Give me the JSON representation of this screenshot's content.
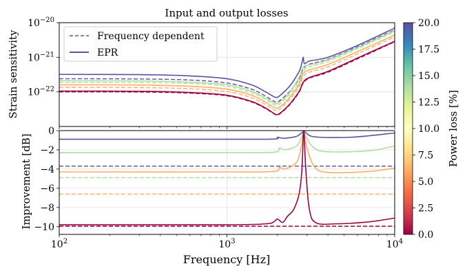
{
  "chart_data": [
    {
      "type": "line",
      "title": "Input and output losses",
      "xlabel": "",
      "ylabel": "Strain sensitivity",
      "xscale": "log",
      "yscale": "log",
      "xlim": [
        100,
        10000
      ],
      "ylim": [
        1e-23,
        1e-20
      ],
      "grid": true,
      "x_tick_labels": [],
      "y_ticks": [
        {
          "value": 1e-22,
          "base": "10",
          "exp": "−22"
        },
        {
          "value": 1e-21,
          "base": "10",
          "exp": "−21"
        },
        {
          "value": 1e-20,
          "base": "10",
          "exp": "−20"
        }
      ],
      "legend": {
        "placement": "top-left",
        "entries": [
          {
            "label": "Frequency dependent",
            "style": "dashed",
            "color": "#5e4fa2"
          },
          {
            "label": "EPR",
            "style": "solid",
            "color": "#5e4fa2"
          }
        ]
      },
      "series": [
        {
          "style": "solid",
          "power_loss_pct": 20,
          "color": "#5e4fa2",
          "values": [
            [
              100,
              3.2e-22
            ],
            [
              300,
              3.15e-22
            ],
            [
              600,
              2.9e-22
            ],
            [
              1000,
              2.4e-22
            ],
            [
              1400,
              1.6e-22
            ],
            [
              1700,
              1e-22
            ],
            [
              1900,
              7.3e-23
            ],
            [
              2000,
              7e-23
            ],
            [
              2150,
              9.2e-23
            ],
            [
              2400,
              1.6e-22
            ],
            [
              2700,
              4e-22
            ],
            [
              2800,
              7e-22
            ],
            [
              2850,
              1e-21
            ],
            [
              2900,
              6.5e-22
            ],
            [
              3100,
              7.8e-22
            ],
            [
              4000,
              1e-21
            ],
            [
              6000,
              2.2e-21
            ],
            [
              10000,
              7e-21
            ]
          ]
        },
        {
          "style": "dashed",
          "power_loss_pct": 20,
          "color": "#5e4fa2",
          "values": [
            [
              100,
              2.4e-22
            ],
            [
              300,
              2.36e-22
            ],
            [
              600,
              2.2e-22
            ],
            [
              1000,
              1.8e-22
            ],
            [
              1400,
              1.2e-22
            ],
            [
              1700,
              7.5e-23
            ],
            [
              1900,
              5.4e-23
            ],
            [
              2000,
              5.1e-23
            ],
            [
              2150,
              6.6e-23
            ],
            [
              2400,
              1.1e-22
            ],
            [
              2700,
              2.4e-22
            ],
            [
              2850,
              4.6e-22
            ],
            [
              3100,
              6.3e-22
            ],
            [
              4000,
              8.8e-22
            ],
            [
              6000,
              2e-21
            ],
            [
              10000,
              6.2e-21
            ]
          ]
        },
        {
          "style": "solid",
          "power_loss_pct": 15,
          "color": "#addda1",
          "values": [
            [
              100,
              2.1e-22
            ],
            [
              300,
              2.07e-22
            ],
            [
              600,
              1.9e-22
            ],
            [
              1000,
              1.6e-22
            ],
            [
              1400,
              1.05e-22
            ],
            [
              1700,
              6.6e-23
            ],
            [
              1900,
              4.8e-23
            ],
            [
              2000,
              4.6e-23
            ],
            [
              2150,
              6e-23
            ],
            [
              2400,
              1.05e-22
            ],
            [
              2700,
              2.7e-22
            ],
            [
              2850,
              5.2e-22
            ],
            [
              3100,
              6e-22
            ],
            [
              4000,
              8.4e-22
            ],
            [
              6000,
              1.9e-21
            ],
            [
              10000,
              5.9e-21
            ]
          ]
        },
        {
          "style": "dashed",
          "power_loss_pct": 15,
          "color": "#addda1",
          "values": [
            [
              100,
              1.9e-22
            ],
            [
              300,
              1.87e-22
            ],
            [
              600,
              1.75e-22
            ],
            [
              1000,
              1.45e-22
            ],
            [
              1400,
              9.5e-23
            ],
            [
              1700,
              6e-23
            ],
            [
              1900,
              4.3e-23
            ],
            [
              2000,
              4.1e-23
            ],
            [
              2150,
              5.3e-23
            ],
            [
              2400,
              9e-23
            ],
            [
              2700,
              2e-22
            ],
            [
              2850,
              3.9e-22
            ],
            [
              3100,
              5.3e-22
            ],
            [
              4000,
              7.6e-22
            ],
            [
              6000,
              1.75e-21
            ],
            [
              10000,
              5.5e-21
            ]
          ]
        },
        {
          "style": "solid",
          "power_loss_pct": 7.5,
          "color": "#fdae61",
          "values": [
            [
              100,
              1.6e-22
            ],
            [
              300,
              1.58e-22
            ],
            [
              600,
              1.45e-22
            ],
            [
              1000,
              1.2e-22
            ],
            [
              1400,
              8e-23
            ],
            [
              1700,
              5e-23
            ],
            [
              1900,
              3.6e-23
            ],
            [
              2000,
              3.4e-23
            ],
            [
              2150,
              4.3e-23
            ],
            [
              2400,
              7.5e-23
            ],
            [
              2700,
              1.7e-22
            ],
            [
              2850,
              3.4e-22
            ],
            [
              3100,
              4.3e-22
            ],
            [
              4000,
              6.2e-22
            ],
            [
              6000,
              1.45e-21
            ],
            [
              10000,
              4.4e-21
            ]
          ]
        },
        {
          "style": "dashed",
          "power_loss_pct": 7.5,
          "color": "#fdae61",
          "values": [
            [
              100,
              1.35e-22
            ],
            [
              300,
              1.33e-22
            ],
            [
              600,
              1.23e-22
            ],
            [
              1000,
              1.02e-22
            ],
            [
              1400,
              6.8e-23
            ],
            [
              1700,
              4.3e-23
            ],
            [
              1900,
              3.1e-23
            ],
            [
              2000,
              2.9e-23
            ],
            [
              2150,
              3.8e-23
            ],
            [
              2400,
              6.5e-23
            ],
            [
              2700,
              1.45e-22
            ],
            [
              2850,
              2.8e-22
            ],
            [
              3100,
              3.7e-22
            ],
            [
              4000,
              5.3e-22
            ],
            [
              6000,
              1.25e-21
            ],
            [
              10000,
              3.9e-21
            ]
          ]
        },
        {
          "style": "solid",
          "power_loss_pct": 0,
          "color": "#9e0142",
          "values": [
            [
              100,
              1.05e-22
            ],
            [
              300,
              1.04e-22
            ],
            [
              600,
              9.6e-23
            ],
            [
              1000,
              8e-23
            ],
            [
              1400,
              5.3e-23
            ],
            [
              1700,
              3.4e-23
            ],
            [
              1900,
              2.4e-23
            ],
            [
              2000,
              2.2e-23
            ],
            [
              2150,
              2.8e-23
            ],
            [
              2400,
              4.8e-23
            ],
            [
              2700,
              1.05e-22
            ],
            [
              2850,
              1.9e-22
            ],
            [
              3100,
              2.6e-22
            ],
            [
              4000,
              3.9e-22
            ],
            [
              6000,
              9.5e-22
            ],
            [
              10000,
              2.9e-21
            ]
          ]
        },
        {
          "style": "dashed",
          "power_loss_pct": 0,
          "color": "#9e0142",
          "values": [
            [
              100,
              1e-22
            ],
            [
              300,
              9.9e-23
            ],
            [
              600,
              9.2e-23
            ],
            [
              1000,
              7.7e-23
            ],
            [
              1400,
              5.1e-23
            ],
            [
              1700,
              3.3e-23
            ],
            [
              1900,
              2.35e-23
            ],
            [
              2000,
              2.15e-23
            ],
            [
              2150,
              2.7e-23
            ],
            [
              2400,
              4.6e-23
            ],
            [
              2700,
              1e-22
            ],
            [
              2850,
              1.8e-22
            ],
            [
              3100,
              2.5e-22
            ],
            [
              4000,
              3.7e-22
            ],
            [
              6000,
              9e-22
            ],
            [
              10000,
              2.8e-21
            ]
          ]
        }
      ]
    },
    {
      "type": "line",
      "title": "",
      "xlabel": "Frequency [Hz]",
      "ylabel": "Improvement [dB]",
      "xscale": "log",
      "yscale": "linear",
      "xlim": [
        100,
        10000
      ],
      "ylim": [
        -10.8,
        0
      ],
      "grid": true,
      "x_ticks": [
        {
          "value": 100,
          "base": "10",
          "exp": "2"
        },
        {
          "value": 1000,
          "base": "10",
          "exp": "3"
        },
        {
          "value": 10000,
          "base": "10",
          "exp": "4"
        }
      ],
      "y_ticks": [
        {
          "value": 0,
          "label": "0"
        },
        {
          "value": -2,
          "label": "−2"
        },
        {
          "value": -4,
          "label": "−4"
        },
        {
          "value": -6,
          "label": "−6"
        },
        {
          "value": -8,
          "label": "−8"
        },
        {
          "value": -10,
          "label": "−10"
        }
      ],
      "series": [
        {
          "style": "solid",
          "power_loss_pct": 20,
          "color": "#5e4fa2",
          "values": [
            [
              100,
              -0.9
            ],
            [
              1000,
              -0.9
            ],
            [
              1900,
              -0.88
            ],
            [
              2000,
              -0.7
            ],
            [
              2200,
              -0.8
            ],
            [
              2600,
              -0.6
            ],
            [
              2800,
              -0.2
            ],
            [
              2870,
              0
            ],
            [
              2950,
              -0.2
            ],
            [
              3200,
              -0.6
            ],
            [
              4000,
              -0.72
            ],
            [
              6000,
              -0.65
            ],
            [
              10000,
              -0.25
            ]
          ]
        },
        {
          "style": "dashed",
          "power_loss_pct": 20,
          "color": "#5e4fa2",
          "values": [
            [
              100,
              -3.7
            ],
            [
              10000,
              -3.7
            ]
          ]
        },
        {
          "style": "solid",
          "power_loss_pct": 15,
          "color": "#addda1",
          "values": [
            [
              100,
              -2.3
            ],
            [
              1000,
              -2.3
            ],
            [
              1900,
              -2.25
            ],
            [
              2050,
              -1.8
            ],
            [
              2200,
              -2.0
            ],
            [
              2600,
              -1.6
            ],
            [
              2800,
              -0.6
            ],
            [
              2870,
              0
            ],
            [
              2950,
              -0.6
            ],
            [
              3300,
              -1.8
            ],
            [
              4000,
              -2.2
            ],
            [
              7000,
              -2.1
            ],
            [
              10000,
              -1.6
            ]
          ]
        },
        {
          "style": "dashed",
          "power_loss_pct": 15,
          "color": "#addda1",
          "values": [
            [
              100,
              -4.9
            ],
            [
              10000,
              -4.9
            ]
          ]
        },
        {
          "style": "solid",
          "power_loss_pct": 7.5,
          "color": "#fdae61",
          "values": [
            [
              100,
              -4.3
            ],
            [
              1000,
              -4.3
            ],
            [
              1900,
              -4.25
            ],
            [
              2050,
              -3.8
            ],
            [
              2200,
              -4.0
            ],
            [
              2600,
              -3.3
            ],
            [
              2800,
              -1.3
            ],
            [
              2870,
              0
            ],
            [
              2950,
              -1.3
            ],
            [
              3300,
              -3.7
            ],
            [
              4000,
              -4.35
            ],
            [
              7000,
              -4.25
            ],
            [
              10000,
              -3.9
            ]
          ]
        },
        {
          "style": "dashed",
          "power_loss_pct": 7.5,
          "color": "#fdae61",
          "values": [
            [
              100,
              -6.6
            ],
            [
              10000,
              -6.6
            ]
          ]
        },
        {
          "style": "solid",
          "power_loss_pct": 0,
          "color": "#9e0142",
          "values": [
            [
              100,
              -9.8
            ],
            [
              1000,
              -9.8
            ],
            [
              1700,
              -9.7
            ],
            [
              1900,
              -9.5
            ],
            [
              2000,
              -9.2
            ],
            [
              2150,
              -9.55
            ],
            [
              2300,
              -8.9
            ],
            [
              2500,
              -8.2
            ],
            [
              2700,
              -6.5
            ],
            [
              2800,
              -4.0
            ],
            [
              2870,
              0
            ],
            [
              2950,
              -4.0
            ],
            [
              3100,
              -8.2
            ],
            [
              3400,
              -9.6
            ],
            [
              4500,
              -9.7
            ],
            [
              7000,
              -9.5
            ],
            [
              10000,
              -9.1
            ]
          ]
        },
        {
          "style": "dashed",
          "power_loss_pct": 0,
          "color": "#9e0142",
          "values": [
            [
              100,
              -9.95
            ],
            [
              10000,
              -9.95
            ]
          ]
        }
      ]
    },
    {
      "type": "colorbar",
      "label": "Power loss [%]",
      "range": [
        0,
        20
      ],
      "ticks": [
        "0.0",
        "2.5",
        "5.0",
        "7.5",
        "10.0",
        "12.5",
        "15.0",
        "17.5",
        "20.0"
      ],
      "colormap": [
        "#9e0142",
        "#d53e4f",
        "#f46d43",
        "#fdae61",
        "#fee08b",
        "#ffffbf",
        "#e6f598",
        "#abdda4",
        "#66c2a5",
        "#3288bd",
        "#5e4fa2"
      ]
    }
  ]
}
